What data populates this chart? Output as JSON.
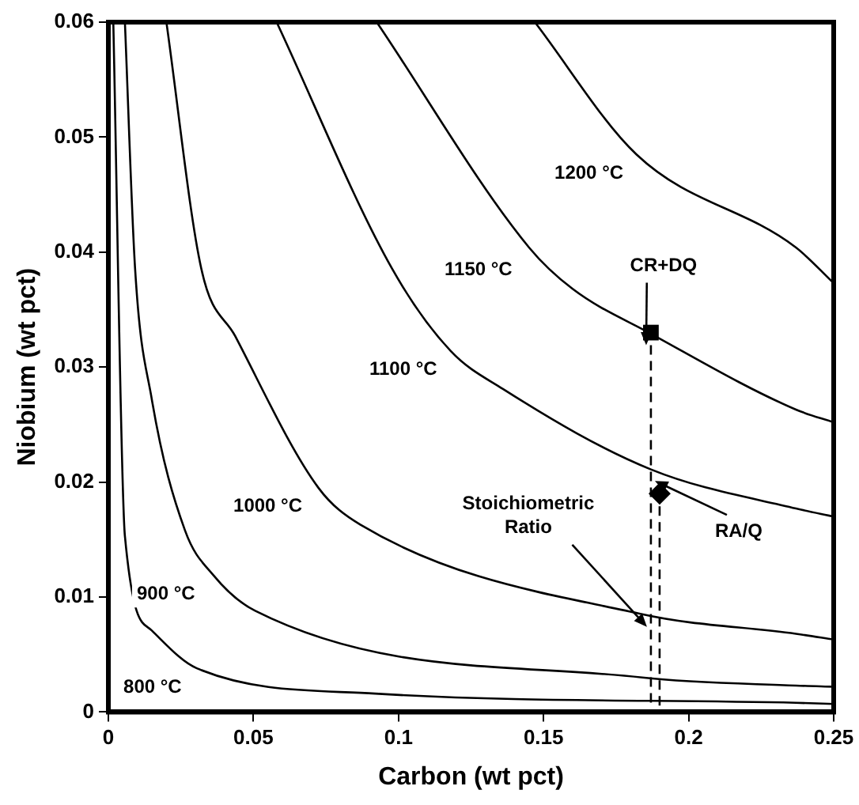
{
  "chart_data": {
    "type": "line",
    "xlabel": "Carbon (wt pct)",
    "ylabel": "Niobium (wt pct)",
    "xlim": [
      0,
      0.25
    ],
    "ylim": [
      0,
      0.06
    ],
    "xticks": [
      0,
      0.05,
      0.1,
      0.15,
      0.2,
      0.25
    ],
    "yticks": [
      0,
      0.01,
      0.02,
      0.03,
      0.04,
      0.05,
      0.06
    ],
    "grid": false,
    "legend": false,
    "marker": "none",
    "line_style": "solid",
    "series": [
      {
        "color": "#000000",
        "x": [
          0.147,
          0.182,
          0.237,
          0.25
        ],
        "values": [
          0.06,
          0.0485,
          0.0404,
          0.0373
        ]
      },
      {
        "color": "#000000",
        "x": [
          0.0925,
          0.145,
          0.16,
          0.187,
          0.237,
          0.25
        ],
        "values": [
          0.06,
          0.0404,
          0.0368,
          0.0329,
          0.0263,
          0.0252
        ]
      },
      {
        "color": "#000000",
        "x": [
          0.058,
          0.0977,
          0.118,
          0.136,
          0.187,
          0.237,
          0.25
        ],
        "values": [
          0.06,
          0.0386,
          0.0314,
          0.0281,
          0.0211,
          0.0177,
          0.017
        ]
      },
      {
        "color": "#000000",
        "x": [
          0.02,
          0.032,
          0.0437,
          0.0724,
          0.0868,
          0.184,
          0.237,
          0.25
        ],
        "values": [
          0.06,
          0.0386,
          0.0327,
          0.0195,
          0.0163,
          0.0085,
          0.0068,
          0.0063
        ]
      },
      {
        "color": "#000000",
        "x": [
          0.0057,
          0.0092,
          0.0149,
          0.0264,
          0.0362,
          0.0506,
          0.184,
          0.237,
          0.25
        ],
        "values": [
          0.06,
          0.0386,
          0.0273,
          0.0158,
          0.0119,
          0.0088,
          0.003,
          0.0023,
          0.0022
        ]
      },
      {
        "color": "#000000",
        "x": [
          0.0017,
          0.0057,
          0.0149,
          0.0305,
          0.092,
          0.237,
          0.25
        ],
        "values": [
          0.06,
          0.0153,
          0.0071,
          0.0038,
          0.0016,
          0.0008,
          0.0007
        ]
      },
      {
        "type": "scatter",
        "color": "#000000",
        "marker": "square",
        "x": [
          0.187
        ],
        "values": [
          0.033
        ]
      },
      {
        "type": "scatter",
        "color": "#000000",
        "marker": "diamond",
        "x": [
          0.19
        ],
        "values": [
          0.019
        ]
      }
    ],
    "annotations": [
      {
        "text": "1200 °C",
        "x": 0.182,
        "y": 0.0485
      },
      {
        "text": "1150 °C",
        "x": 0.145,
        "y": 0.0404
      },
      {
        "text": "1100 °C",
        "x": 0.118,
        "y": 0.0314
      },
      {
        "text": "1000 °C",
        "x": 0.0724,
        "y": 0.0195
      },
      {
        "text": "900 °C",
        "x": 0.0362,
        "y": 0.0119
      },
      {
        "text": "800 °C",
        "x": 0.0305,
        "y": 0.0038
      },
      {
        "text": "CR+DQ",
        "x": 0.187,
        "y": 0.033
      },
      {
        "text": "Stoichiometric\nRatio",
        "x": 0.184,
        "y": 0.0085
      },
      {
        "text": "RA/Q",
        "x": 0.19,
        "y": 0.019
      }
    ]
  }
}
